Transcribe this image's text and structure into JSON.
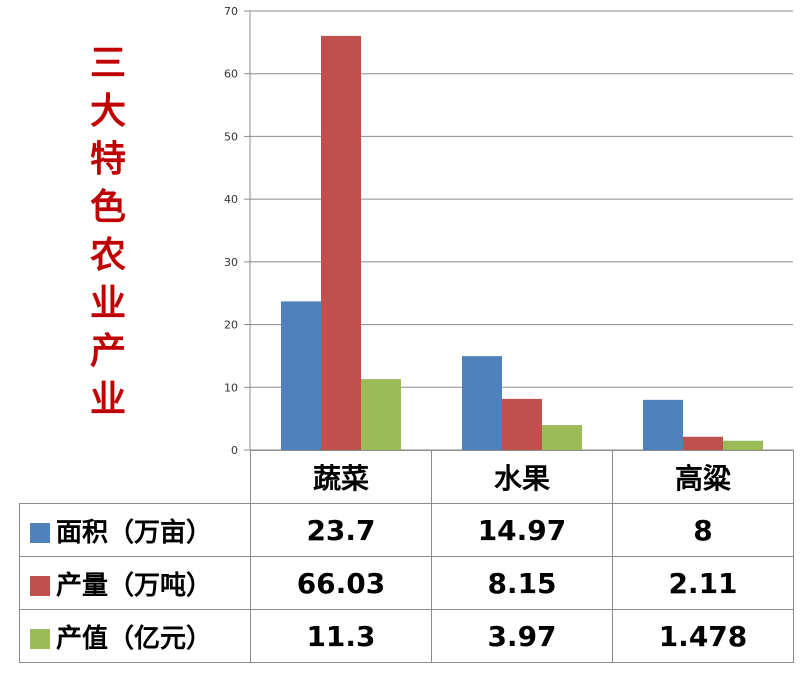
{
  "side_title": "三大特色农业产业",
  "colors": {
    "area": "#4f81bd",
    "production": "#c0504d",
    "value": "#9bbb59",
    "grid": "#8c8c8c",
    "title": "#c00000"
  },
  "chart_data": {
    "type": "bar",
    "title": "三大特色农业产业",
    "categories": [
      "蔬菜",
      "水果",
      "高粱"
    ],
    "series": [
      {
        "name": "面积（万亩）",
        "values": [
          23.7,
          14.97,
          8
        ]
      },
      {
        "name": "产量（万吨）",
        "values": [
          66.03,
          8.15,
          2.11
        ]
      },
      {
        "name": "产值（亿元）",
        "values": [
          11.3,
          3.97,
          1.478
        ]
      }
    ],
    "ylim": [
      0,
      70
    ],
    "yticks": [
      0,
      10,
      20,
      30,
      40,
      50,
      60,
      70
    ],
    "grid": true,
    "legend": "data-table-left"
  },
  "table": {
    "rows": [
      {
        "label": "面积（万亩）",
        "cells": [
          "23.7",
          "14.97",
          "8"
        ]
      },
      {
        "label": "产量（万吨）",
        "cells": [
          "66.03",
          "8.15",
          "2.11"
        ]
      },
      {
        "label": "产值（亿元）",
        "cells": [
          "11.3",
          "3.97",
          "1.478"
        ]
      }
    ]
  }
}
